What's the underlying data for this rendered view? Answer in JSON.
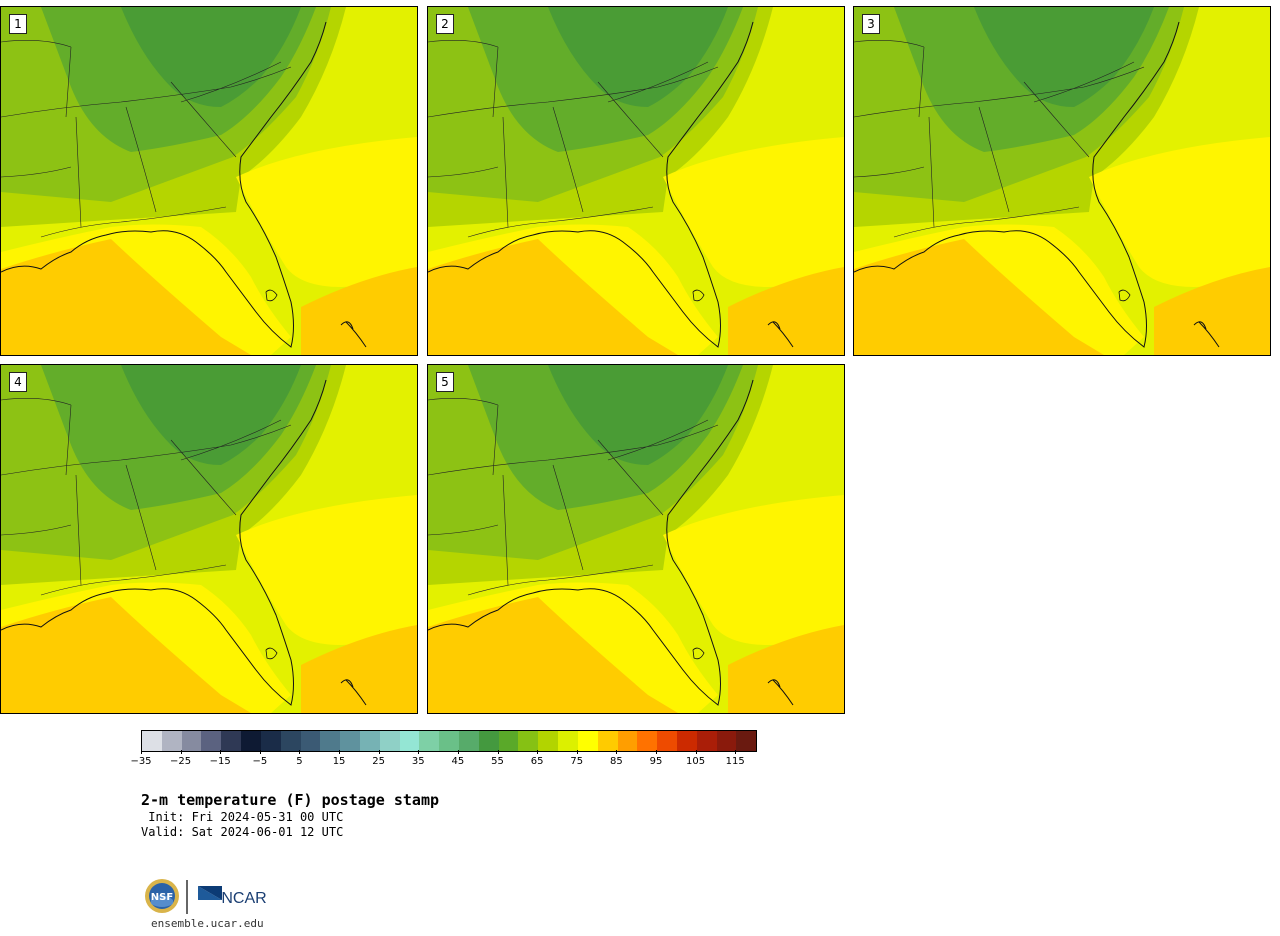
{
  "panels": [
    {
      "label": "1"
    },
    {
      "label": "2"
    },
    {
      "label": "3"
    },
    {
      "label": "4"
    },
    {
      "label": "5"
    }
  ],
  "colorbar": {
    "colors": [
      "#dde0e6",
      "#b0b4c2",
      "#868ba0",
      "#5b6280",
      "#2f3955",
      "#0e1a33",
      "#1a2c48",
      "#2c4660",
      "#3b5a74",
      "#4f7a8c",
      "#5f929e",
      "#76b2b4",
      "#8fd0c6",
      "#94e6d4",
      "#7ed0a6",
      "#6ac088",
      "#57ab6a",
      "#44993f",
      "#5aa929",
      "#86c114",
      "#b2d400",
      "#dcf000",
      "#ffff00",
      "#ffcb00",
      "#ff9e00",
      "#ff7200",
      "#ee4b00",
      "#cc2a00",
      "#aa1e08",
      "#8a1a0c",
      "#6a1a10"
    ],
    "tick_labels": [
      "−35",
      "−25",
      "−15",
      "−5",
      "5",
      "15",
      "25",
      "35",
      "45",
      "55",
      "65",
      "75",
      "85",
      "95",
      "105",
      "115"
    ]
  },
  "title": "2-m temperature (F) postage stamp",
  "init": " Init: Fri 2024-05-31 00 UTC",
  "valid": "Valid: Sat 2024-06-01 12 UTC",
  "footer": {
    "logo_text": "NCAR",
    "seal_text": "NSF",
    "url": "ensemble.ucar.edu"
  }
}
